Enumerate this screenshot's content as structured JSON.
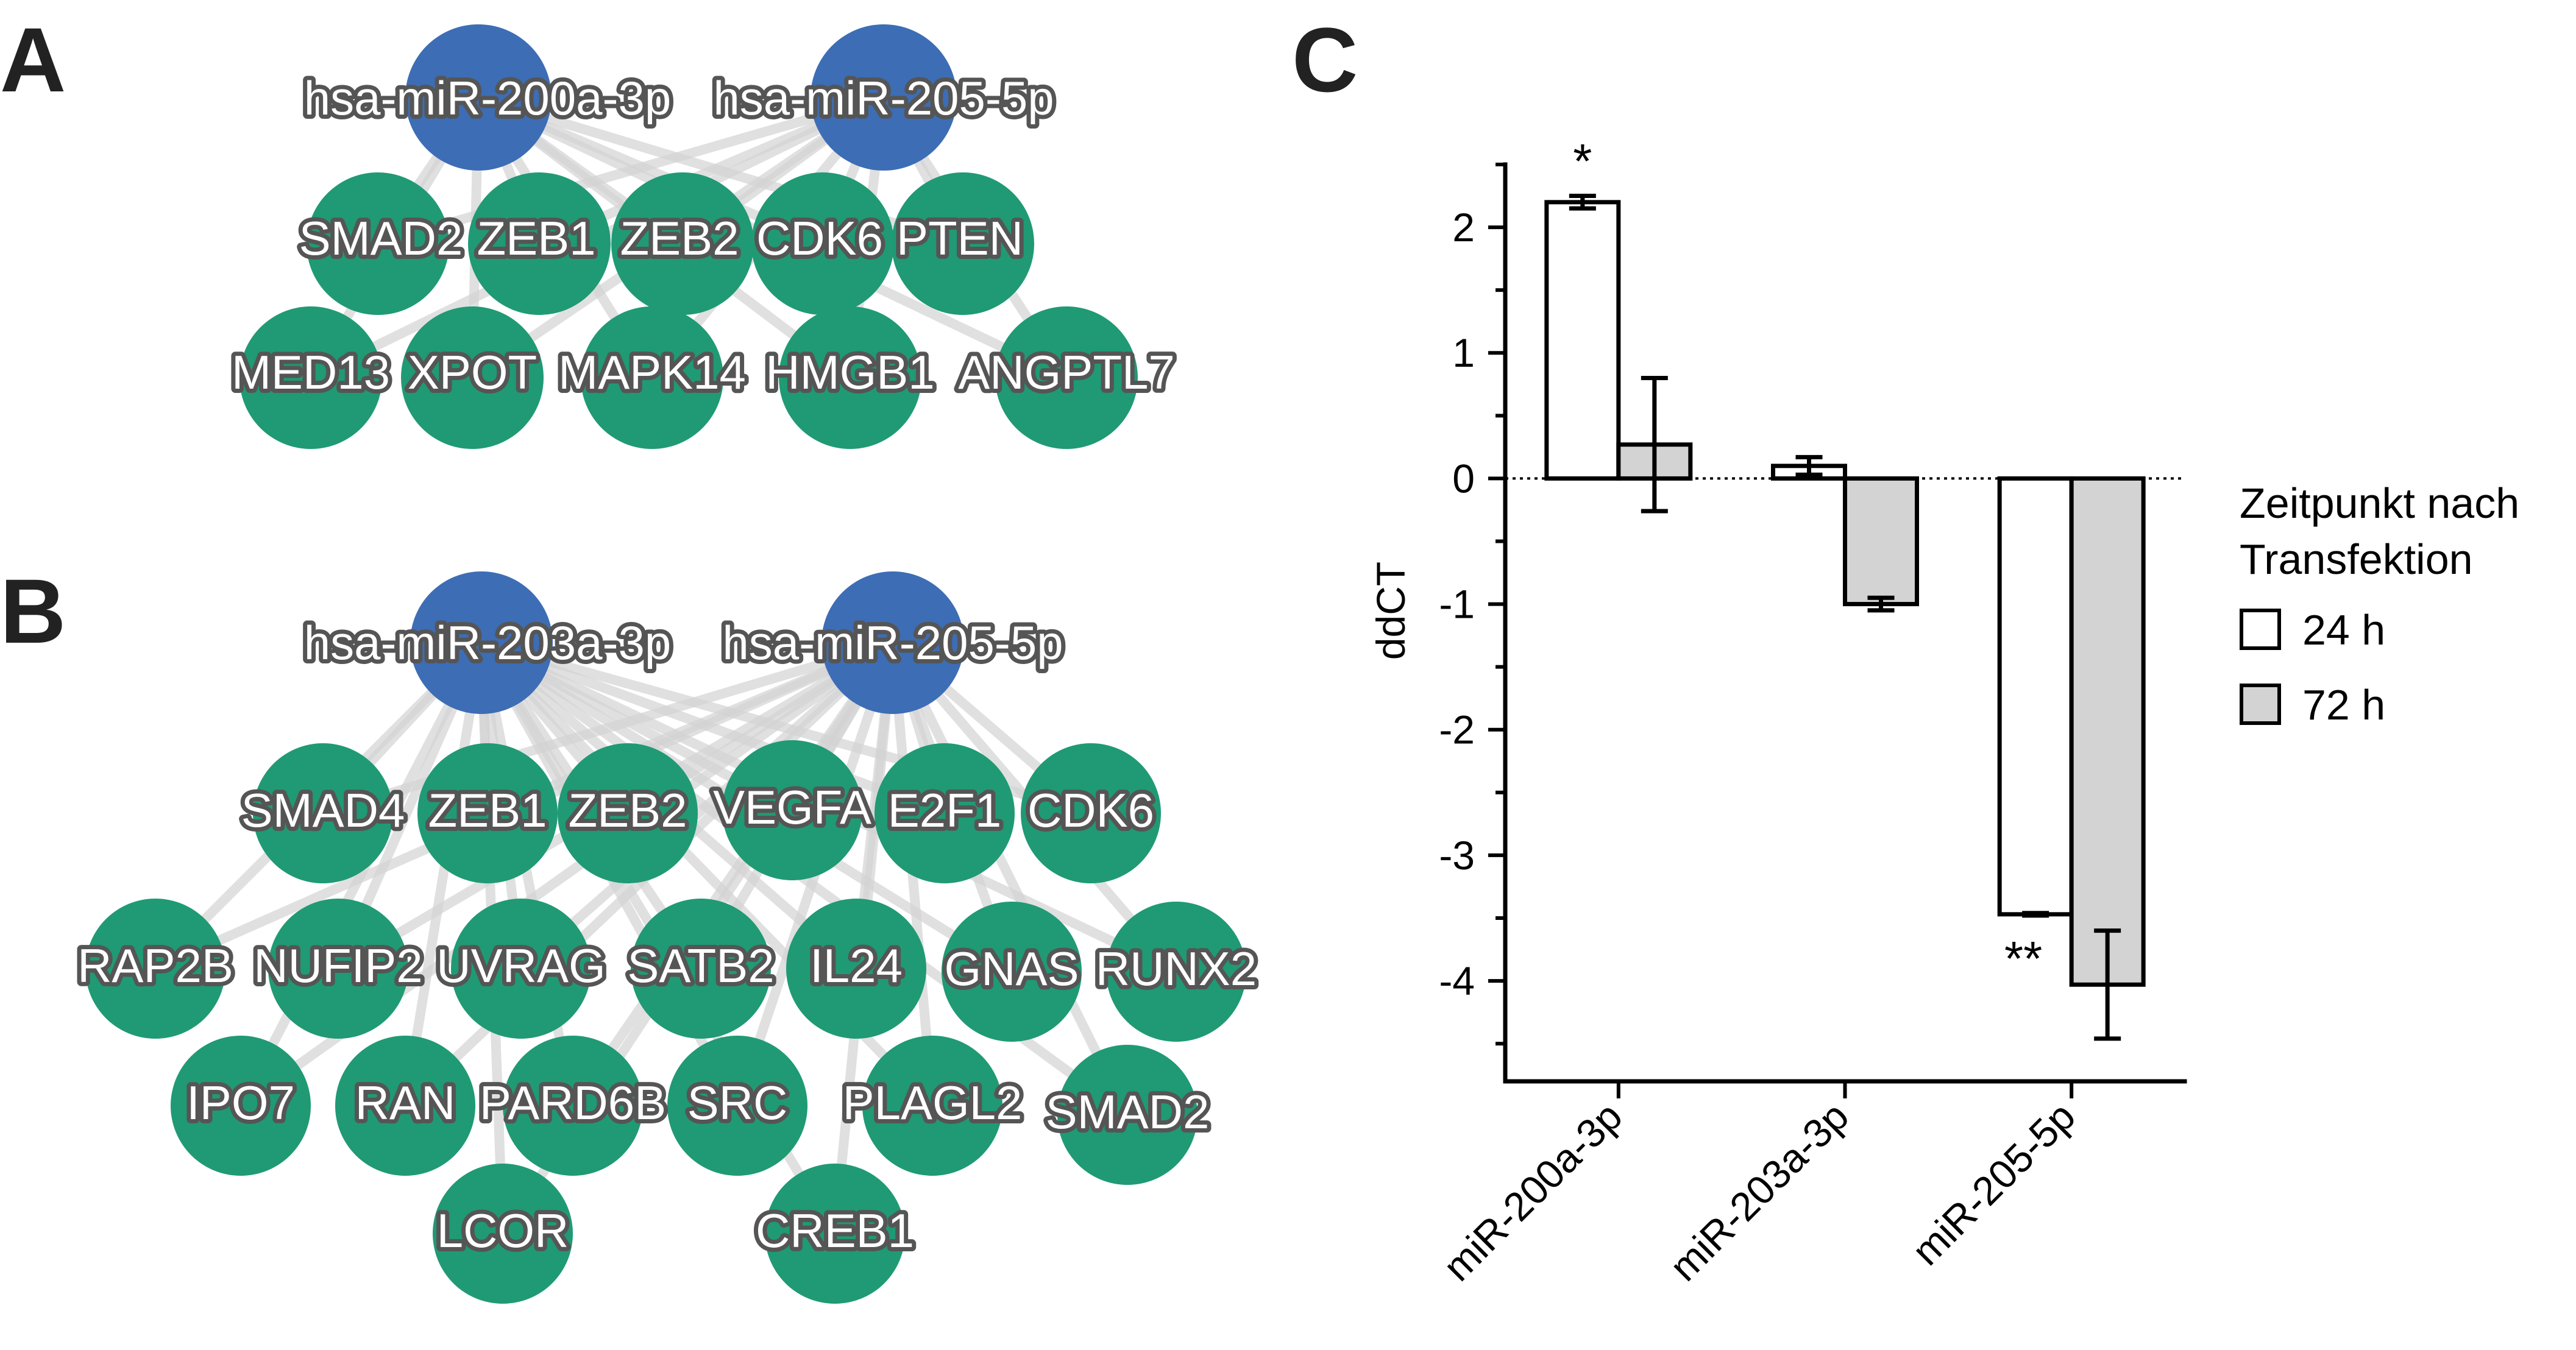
{
  "panels": {
    "a": {
      "letter": "A"
    },
    "b": {
      "letter": "B"
    },
    "c": {
      "letter": "C"
    }
  },
  "colors": {
    "mirna_node": "#3D6DB5",
    "target_node": "#1F9A74",
    "edge": "#D3D3D3",
    "bar_24h": "#FFFFFF",
    "bar_72h": "#D3D3D3"
  },
  "network_a": {
    "mirna_nodes": [
      "hsa-miR-200a-3p",
      "hsa-miR-205-5p"
    ],
    "target_rows": [
      [
        "SMAD2",
        "ZEB1",
        "ZEB2",
        "CDK6",
        "PTEN"
      ],
      [
        "MED13",
        "XPOT",
        "MAPK14",
        "HMGB1",
        "ANGPTL7"
      ]
    ]
  },
  "network_b": {
    "mirna_nodes": [
      "hsa-miR-203a-3p",
      "hsa-miR-205-5p"
    ],
    "target_rows": [
      [
        "SMAD4",
        "ZEB1",
        "ZEB2",
        "VEGFA",
        "E2F1",
        "CDK6"
      ],
      [
        "RAP2B",
        "NUFIP2",
        "UVRAG",
        "SATB2",
        "IL24",
        "GNAS",
        "RUNX2"
      ],
      [
        "IPO7",
        "RAN",
        "PARD6B",
        "SRC",
        "PLAGL2",
        "SMAD2"
      ],
      [
        "LCOR",
        "CREB1"
      ]
    ]
  },
  "chart_data": {
    "type": "bar",
    "categories": [
      "miR-200a-3p",
      "miR-203a-3p",
      "miR-205-5p"
    ],
    "series": [
      {
        "name": "24 h",
        "values": [
          2.2,
          0.1,
          -3.47
        ],
        "errors": [
          0.05,
          0.07,
          0.01
        ]
      },
      {
        "name": "72 h",
        "values": [
          0.27,
          -1.0,
          -4.03
        ],
        "errors": [
          0.53,
          0.05,
          0.43
        ]
      }
    ],
    "ylabel": "ddCT",
    "ylim": [
      -4.8,
      2.5
    ],
    "yticks": [
      2,
      1,
      0,
      -1,
      -2,
      -3,
      -4
    ],
    "zero_line": "dotted",
    "significance": [
      {
        "category": "miR-200a-3p",
        "series": "24 h",
        "label": "*"
      },
      {
        "category": "miR-205-5p",
        "series": "24 h",
        "label": "**"
      }
    ],
    "legend": {
      "title_lines": [
        "Zeitpunkt nach",
        "Transfektion"
      ],
      "placement": "right"
    }
  }
}
